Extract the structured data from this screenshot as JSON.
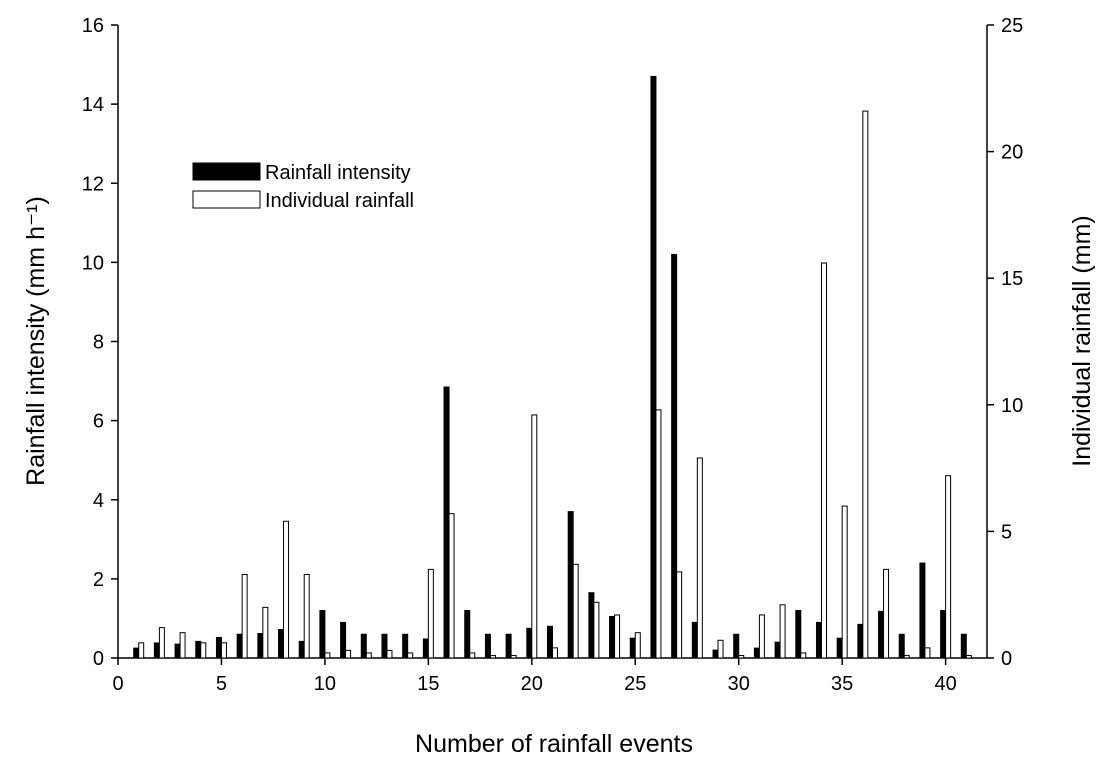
{
  "chart_data": {
    "type": "bar",
    "x_label": "Number of rainfall events",
    "y_label": "Rainfall intensity (mm h⁻¹)",
    "y2_label": "Individual rainfall (mm)",
    "x": [
      1,
      2,
      3,
      4,
      5,
      6,
      7,
      8,
      9,
      10,
      11,
      12,
      13,
      14,
      15,
      16,
      17,
      18,
      19,
      20,
      21,
      22,
      23,
      24,
      25,
      26,
      27,
      28,
      29,
      30,
      31,
      32,
      33,
      34,
      35,
      36,
      37,
      38,
      39,
      40,
      41
    ],
    "series": [
      {
        "name": "Rainfall intensity",
        "color": "#000000",
        "values": [
          0.25,
          0.38,
          0.35,
          0.42,
          0.52,
          0.6,
          0.62,
          0.72,
          0.42,
          1.2,
          0.9,
          0.6,
          0.6,
          0.6,
          0.48,
          6.85,
          1.2,
          0.6,
          0.6,
          0.75,
          0.8,
          3.7,
          1.65,
          1.05,
          0.5,
          14.7,
          10.2,
          0.9,
          0.2,
          0.6,
          0.25,
          0.4,
          1.2,
          0.9,
          0.5,
          0.85,
          1.18,
          0.6,
          2.4,
          1.2,
          0.6
        ]
      },
      {
        "name": "Individual rainfall",
        "color": "#ffffff",
        "axis": "y2",
        "values": [
          0.6,
          1.2,
          1.0,
          0.6,
          0.6,
          3.3,
          2.0,
          5.4,
          3.3,
          0.2,
          0.3,
          0.2,
          0.3,
          0.2,
          3.5,
          5.7,
          0.2,
          0.1,
          0.1,
          9.6,
          0.4,
          3.7,
          2.2,
          1.7,
          1.0,
          9.8,
          3.4,
          7.9,
          0.7,
          0.1,
          1.7,
          2.1,
          0.2,
          15.6,
          6.0,
          21.6,
          3.5,
          0.1,
          0.4,
          7.2,
          0.1
        ]
      }
    ],
    "xlim": [
      0,
      42
    ],
    "xticks": [
      0,
      5,
      10,
      15,
      20,
      25,
      30,
      35,
      40
    ],
    "ylim": [
      0,
      16
    ],
    "yticks": [
      0,
      2,
      4,
      6,
      8,
      10,
      12,
      14,
      16
    ],
    "y2lim": [
      0,
      25
    ],
    "y2ticks": [
      0,
      5,
      10,
      15,
      20,
      25
    ],
    "legend": "upper left",
    "grid": false
  }
}
